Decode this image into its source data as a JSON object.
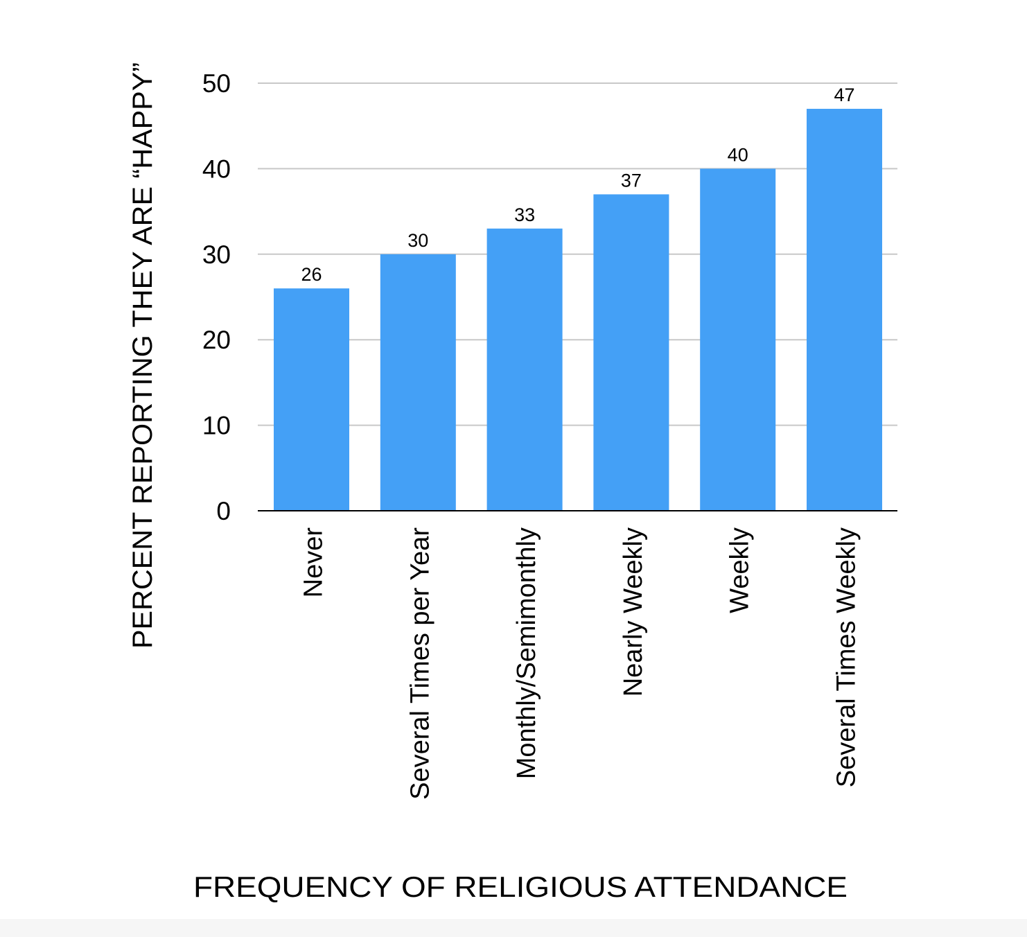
{
  "chart_data": {
    "type": "bar",
    "title": "",
    "xlabel": "FREQUENCY OF RELIGIOUS ATTENDANCE",
    "ylabel": "PERCENT REPORTING THEY ARE “HAPPY”",
    "categories": [
      "Never",
      "Several Times per Year",
      "Monthly/Semimonthly",
      "Nearly Weekly",
      "Weekly",
      "Several Times Weekly"
    ],
    "values": [
      26,
      30,
      33,
      37,
      40,
      47
    ],
    "data_labels": [
      "26",
      "30",
      "33",
      "37",
      "40",
      "47"
    ],
    "ylim": [
      0,
      50
    ],
    "yticks": [
      0,
      10,
      20,
      30,
      40,
      50
    ],
    "ytick_labels": [
      "0",
      "10",
      "20",
      "30",
      "40",
      "50"
    ],
    "grid": true,
    "legend": "none",
    "bar_color": "#44a0f6",
    "gridline_color": "#c8c8c8",
    "axis_color": "#000000",
    "text_color": "#000000"
  }
}
